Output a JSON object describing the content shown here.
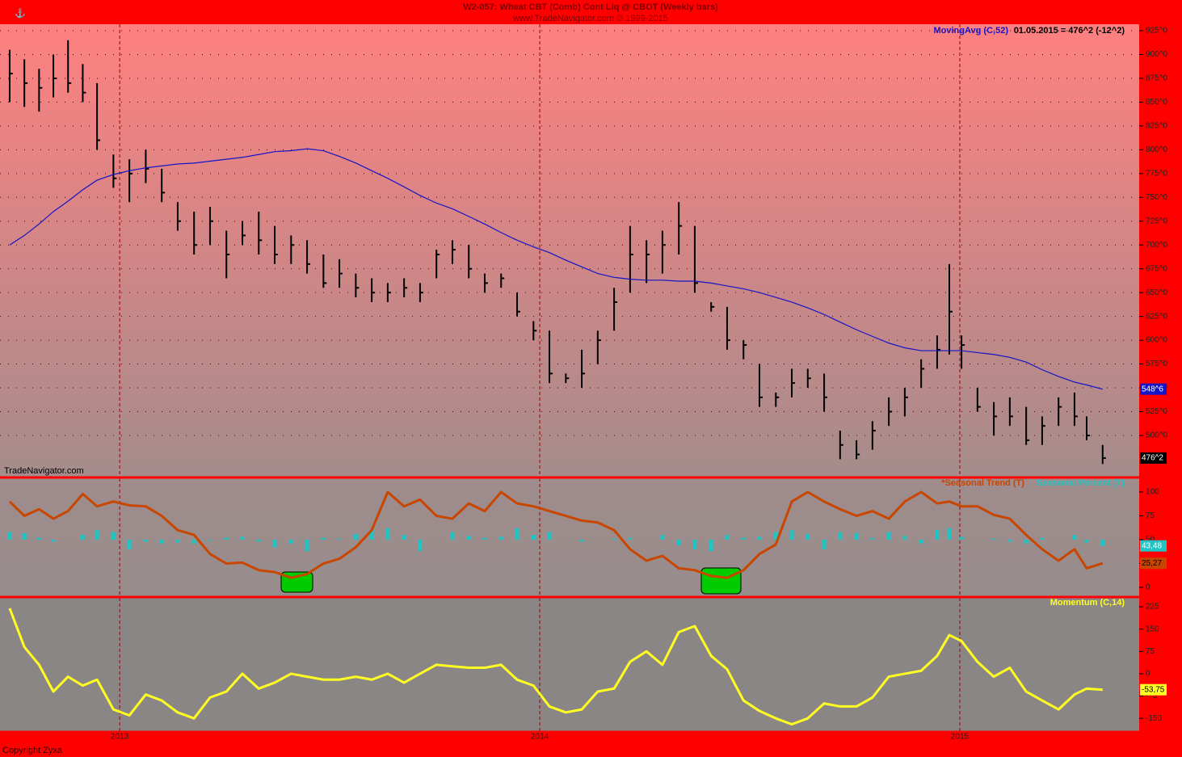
{
  "header": {
    "title": "W2-057:  Wheat CBT (Comb) Cont Liq @ CBOT  (Weekly bars)",
    "subtitle": "www.TradeNavigator.com © 1999-2015"
  },
  "watermark": "TradeNavigator.com",
  "copyright": "Copyright Zyxa",
  "chart_data": [
    {
      "type": "ohlc",
      "status": "01.05.2015 = 476^2 (-12^2)",
      "x": [
        2012.738,
        2012.773,
        2012.808,
        2012.842,
        2012.877,
        2012.912,
        2012.946,
        2012.985,
        2013.023,
        2013.062,
        2013.1,
        2013.138,
        2013.177,
        2013.215,
        2013.254,
        2013.292,
        2013.331,
        2013.369,
        2013.408,
        2013.446,
        2013.485,
        2013.523,
        2013.562,
        2013.6,
        2013.638,
        2013.677,
        2013.715,
        2013.754,
        2013.792,
        2013.831,
        2013.869,
        2013.908,
        2013.946,
        2013.985,
        2014.023,
        2014.062,
        2014.1,
        2014.138,
        2014.177,
        2014.215,
        2014.254,
        2014.292,
        2014.331,
        2014.369,
        2014.408,
        2014.446,
        2014.485,
        2014.523,
        2014.562,
        2014.6,
        2014.638,
        2014.677,
        2014.715,
        2014.754,
        2014.792,
        2014.831,
        2014.869,
        2014.908,
        2014.946,
        2014.975,
        2015.004,
        2015.042,
        2015.081,
        2015.119,
        2015.158,
        2015.196,
        2015.235,
        2015.273,
        2015.302,
        2015.34
      ],
      "xlim": [
        2012.715,
        2015.427
      ],
      "xticks": [
        2013,
        2014,
        2015
      ],
      "ylim": [
        456.7,
        931.8
      ],
      "yticks": [
        {
          "value": 500,
          "label": "500^0"
        },
        {
          "value": 525,
          "label": "525^0"
        },
        {
          "value": 550,
          "label": "550^0"
        },
        {
          "value": 575,
          "label": "575^0"
        },
        {
          "value": 600,
          "label": "600^0"
        },
        {
          "value": 625,
          "label": "625^0"
        },
        {
          "value": 650,
          "label": "650^0"
        },
        {
          "value": 675,
          "label": "675^0"
        },
        {
          "value": 700,
          "label": "700^0"
        },
        {
          "value": 725,
          "label": "725^0"
        },
        {
          "value": 750,
          "label": "750^0"
        },
        {
          "value": 775,
          "label": "775^0"
        },
        {
          "value": 800,
          "label": "800^0"
        },
        {
          "value": 825,
          "label": "825^0"
        },
        {
          "value": 850,
          "label": "850^0"
        },
        {
          "value": 875,
          "label": "875^0"
        },
        {
          "value": 900,
          "label": "900^0"
        },
        {
          "value": 925,
          "label": "925^0"
        }
      ],
      "grid": true,
      "bars": {
        "color": "#000000",
        "high": [
          905,
          895,
          885,
          900,
          915,
          890,
          870,
          795,
          790,
          800,
          780,
          745,
          735,
          740,
          715,
          725,
          735,
          720,
          710,
          705,
          690,
          685,
          670,
          665,
          660,
          665,
          660,
          695,
          705,
          700,
          670,
          670,
          650,
          620,
          610,
          565,
          590,
          610,
          655,
          720,
          705,
          715,
          745,
          720,
          640,
          635,
          600,
          575,
          545,
          570,
          570,
          565,
          505,
          495,
          515,
          540,
          550,
          580,
          605,
          680,
          605,
          550,
          535,
          540,
          530,
          520,
          540,
          545,
          520,
          490
        ],
        "low": [
          850,
          845,
          840,
          855,
          860,
          850,
          800,
          760,
          745,
          765,
          745,
          715,
          690,
          700,
          665,
          700,
          690,
          680,
          680,
          670,
          655,
          655,
          645,
          640,
          640,
          645,
          640,
          665,
          680,
          665,
          650,
          655,
          625,
          600,
          555,
          555,
          550,
          575,
          610,
          650,
          660,
          670,
          690,
          650,
          630,
          590,
          580,
          530,
          530,
          540,
          550,
          525,
          475,
          475,
          485,
          510,
          520,
          550,
          570,
          585,
          570,
          525,
          500,
          510,
          490,
          490,
          510,
          510,
          495,
          470
        ],
        "close": [
          880,
          870,
          865,
          875,
          870,
          860,
          810,
          770,
          775,
          780,
          755,
          725,
          700,
          725,
          690,
          710,
          705,
          690,
          700,
          680,
          660,
          670,
          655,
          650,
          650,
          655,
          650,
          690,
          695,
          675,
          660,
          665,
          630,
          610,
          565,
          560,
          565,
          600,
          640,
          690,
          690,
          700,
          720,
          660,
          635,
          600,
          595,
          540,
          540,
          555,
          560,
          540,
          490,
          480,
          505,
          525,
          540,
          570,
          590,
          630,
          595,
          530,
          520,
          520,
          495,
          510,
          530,
          520,
          500,
          476.25
        ],
        "last_label": "476^2"
      },
      "series": [
        {
          "name": "MovingAvg (C,52)",
          "color": "#1414c8",
          "label_color": "#1414c8",
          "last_label": "548^6",
          "values": [
            700,
            710,
            722,
            735,
            746,
            758,
            768,
            774,
            778,
            781,
            783,
            785,
            786,
            788,
            790,
            792,
            795,
            798,
            799,
            801,
            799,
            793,
            786,
            778,
            770,
            761,
            752,
            744,
            738,
            730,
            722,
            713,
            705,
            698,
            692,
            684,
            677,
            670,
            666,
            664,
            663,
            663,
            662,
            662,
            660,
            657,
            654,
            650,
            645,
            640,
            634,
            627,
            619,
            611,
            604,
            597,
            592,
            589,
            589,
            589,
            589,
            587,
            585,
            582,
            577,
            569,
            562,
            556,
            553,
            548.6
          ]
        }
      ]
    },
    {
      "type": "seasonal",
      "ylim": [
        -9.3,
        114.4
      ],
      "yticks": [
        0,
        25,
        50,
        75,
        100
      ],
      "baseline": 50,
      "series": [
        {
          "name": "*Seasonal Trend (T)",
          "kind": "line",
          "color": "#c84600",
          "last_label": "25,27",
          "values": [
            90,
            75,
            82,
            72,
            80,
            98,
            85,
            90,
            86,
            85,
            75,
            60,
            55,
            35,
            25,
            26,
            18,
            16,
            10,
            14,
            25,
            30,
            42,
            60,
            100,
            85,
            92,
            75,
            72,
            88,
            80,
            100,
            88,
            85,
            80,
            75,
            70,
            68,
            60,
            40,
            28,
            33,
            20,
            18,
            12,
            10,
            18,
            35,
            45,
            90,
            100,
            90,
            82,
            75,
            80,
            72,
            90,
            100,
            88,
            90,
            85,
            85,
            76,
            72,
            55,
            40,
            28,
            40,
            20,
            25.27
          ]
        },
        {
          "name": "Seasonal Percent (T)",
          "kind": "bar",
          "color": "#22c3c3",
          "last_label": "43,48",
          "values": [
            58,
            57,
            52,
            48,
            50,
            55,
            60,
            58,
            40,
            48,
            46,
            47,
            46,
            49,
            52,
            53,
            48,
            42,
            46,
            38,
            52,
            51,
            56,
            60,
            62,
            55,
            38,
            50,
            58,
            54,
            52,
            53,
            62,
            55,
            58,
            50,
            48,
            50,
            51,
            52,
            50,
            55,
            44,
            40,
            38,
            55,
            52,
            53,
            58,
            60,
            56,
            40,
            58,
            57,
            52,
            58,
            54,
            46,
            60,
            62,
            53,
            50,
            51,
            48,
            46,
            52,
            50,
            55,
            47,
            43.48
          ]
        }
      ]
    },
    {
      "type": "momentum",
      "ylim": [
        -193,
        255
      ],
      "yticks": [
        -150,
        -75,
        0,
        75,
        150,
        225
      ],
      "series": [
        {
          "name": "Momentum (C,14)",
          "kind": "line",
          "color": "#ffff22",
          "last_label": "-53,75",
          "values": [
            220,
            90,
            30,
            -60,
            -10,
            -40,
            -20,
            -120,
            -140,
            -70,
            -90,
            -130,
            -150,
            -80,
            -60,
            0,
            -50,
            -30,
            0,
            -10,
            -20,
            -20,
            -10,
            -20,
            0,
            -30,
            0,
            30,
            25,
            20,
            20,
            30,
            -20,
            -40,
            -110,
            -130,
            -120,
            -60,
            -50,
            40,
            75,
            30,
            140,
            160,
            60,
            15,
            -90,
            -125,
            -150,
            -170,
            -150,
            -100,
            -110,
            -110,
            -80,
            -10,
            0,
            10,
            60,
            130,
            110,
            40,
            -10,
            20,
            -60,
            -90,
            -120,
            -70,
            -50,
            -53.75
          ]
        }
      ]
    }
  ]
}
